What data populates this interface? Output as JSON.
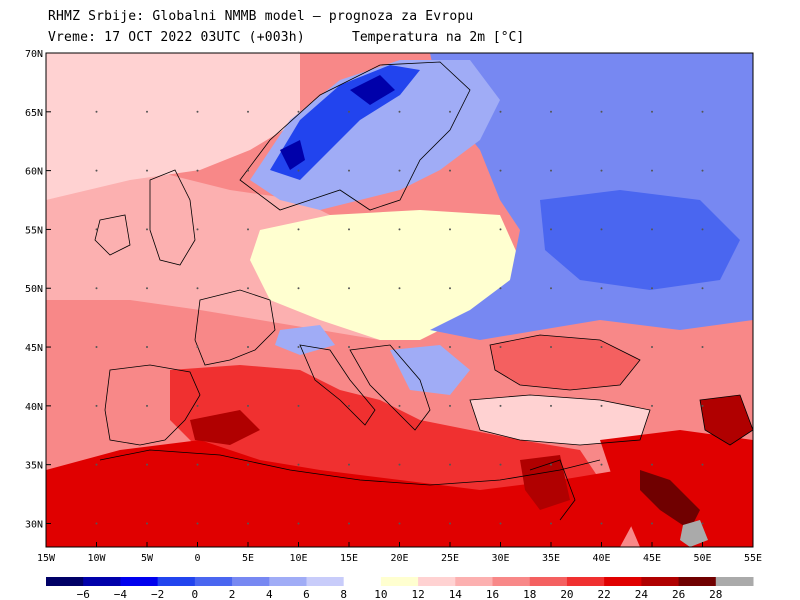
{
  "header": {
    "line1": "RHMZ Srbije: Globalni NMMB model — prognoza za Evropu",
    "line2": "Vreme: 17 OCT 2022 03UTC (+003h)",
    "variable": "Temperatura na 2m [°C]"
  },
  "map": {
    "lat_range": [
      28,
      70
    ],
    "lon_range": [
      -15,
      55
    ],
    "lat_ticks": [
      {
        "value": 30,
        "label": "30N"
      },
      {
        "value": 35,
        "label": "35N"
      },
      {
        "value": 40,
        "label": "40N"
      },
      {
        "value": 45,
        "label": "45N"
      },
      {
        "value": 50,
        "label": "50N"
      },
      {
        "value": 55,
        "label": "55N"
      },
      {
        "value": 60,
        "label": "60N"
      },
      {
        "value": 65,
        "label": "65N"
      },
      {
        "value": 70,
        "label": "70N"
      }
    ],
    "lon_ticks": [
      {
        "value": -15,
        "label": "15W"
      },
      {
        "value": -10,
        "label": "10W"
      },
      {
        "value": -5,
        "label": "5W"
      },
      {
        "value": 0,
        "label": "0"
      },
      {
        "value": 5,
        "label": "5E"
      },
      {
        "value": 10,
        "label": "10E"
      },
      {
        "value": 15,
        "label": "15E"
      },
      {
        "value": 20,
        "label": "20E"
      },
      {
        "value": 25,
        "label": "25E"
      },
      {
        "value": 30,
        "label": "30E"
      },
      {
        "value": 35,
        "label": "35E"
      },
      {
        "value": 40,
        "label": "40E"
      },
      {
        "value": 45,
        "label": "45E"
      },
      {
        "value": 50,
        "label": "50E"
      },
      {
        "value": 55,
        "label": "55E"
      }
    ],
    "grid_dots": true
  },
  "colorbar": {
    "bins": [
      {
        "color": "#000066"
      },
      {
        "color": "#0000aa"
      },
      {
        "color": "#0000ee"
      },
      {
        "color": "#2244ee"
      },
      {
        "color": "#4a66f0"
      },
      {
        "color": "#7788f2"
      },
      {
        "color": "#a0acf6"
      },
      {
        "color": "#c8ccfa"
      },
      {
        "color": "#ffffff"
      },
      {
        "color": "#ffffd0"
      },
      {
        "color": "#ffd2d2"
      },
      {
        "color": "#fcb0b0"
      },
      {
        "color": "#f88888"
      },
      {
        "color": "#f46060"
      },
      {
        "color": "#f03030"
      },
      {
        "color": "#e00000"
      },
      {
        "color": "#b00000"
      },
      {
        "color": "#700000"
      },
      {
        "color": "#aaaaaa"
      }
    ],
    "labels": [
      "−6",
      "−4",
      "−2",
      "0",
      "2",
      "4",
      "6",
      "8",
      "10",
      "12",
      "14",
      "16",
      "18",
      "20",
      "22",
      "24",
      "26",
      "28"
    ]
  },
  "regions": [
    {
      "name": "background-warm",
      "color": "#f88888"
    },
    {
      "name": "north-atlantic-mild",
      "color": "#fcb0b0"
    },
    {
      "name": "central-europe-cool",
      "color": "#ffffd0"
    },
    {
      "name": "eastern-europe-cold",
      "color": "#7788f2"
    },
    {
      "name": "russia-cold",
      "color": "#4a66f0"
    },
    {
      "name": "scandinavia-cold",
      "color": "#a0acf6"
    },
    {
      "name": "norway-mountains-cold",
      "color": "#2244ee"
    },
    {
      "name": "mediterranean-warm",
      "color": "#f03030"
    },
    {
      "name": "north-africa-hot",
      "color": "#e00000"
    },
    {
      "name": "black-sea-warm",
      "color": "#f46060"
    },
    {
      "name": "red-sea-hot",
      "color": "#b00000"
    },
    {
      "name": "persian-gulf-hot",
      "color": "#700000"
    },
    {
      "name": "zagros-gray",
      "color": "#aaaaaa"
    }
  ]
}
